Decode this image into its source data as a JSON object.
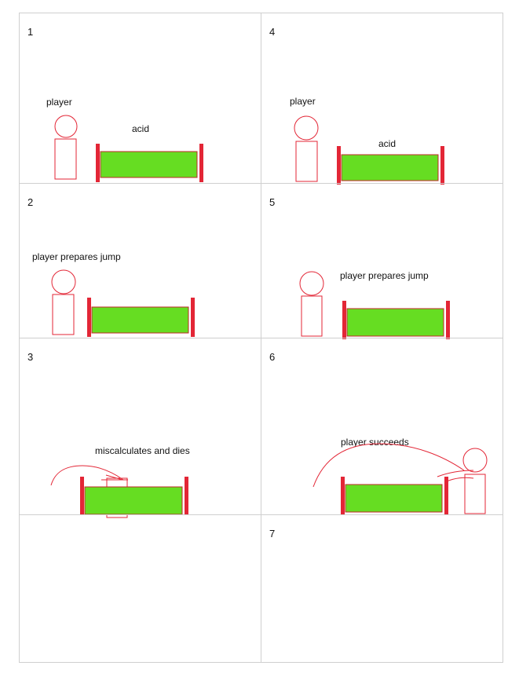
{
  "colors": {
    "border": "#cfcfcf",
    "stroke": "#e32636",
    "acid_fill": "#66dd22",
    "acid_stroke": "#c0282a",
    "wall": "#e32636"
  },
  "panels": [
    {
      "number": "1",
      "labels": {
        "player": "player",
        "acid": "acid"
      }
    },
    {
      "number": "4",
      "labels": {
        "player": "player",
        "acid": "acid"
      }
    },
    {
      "number": "2",
      "labels": {
        "caption": "player prepares jump"
      }
    },
    {
      "number": "5",
      "labels": {
        "caption": "player prepares jump"
      }
    },
    {
      "number": "3",
      "labels": {
        "caption": "miscalculates and dies"
      }
    },
    {
      "number": "6",
      "labels": {
        "caption": "player succeeds"
      }
    },
    {
      "number": "",
      "labels": {}
    },
    {
      "number": "7",
      "labels": {}
    }
  ]
}
